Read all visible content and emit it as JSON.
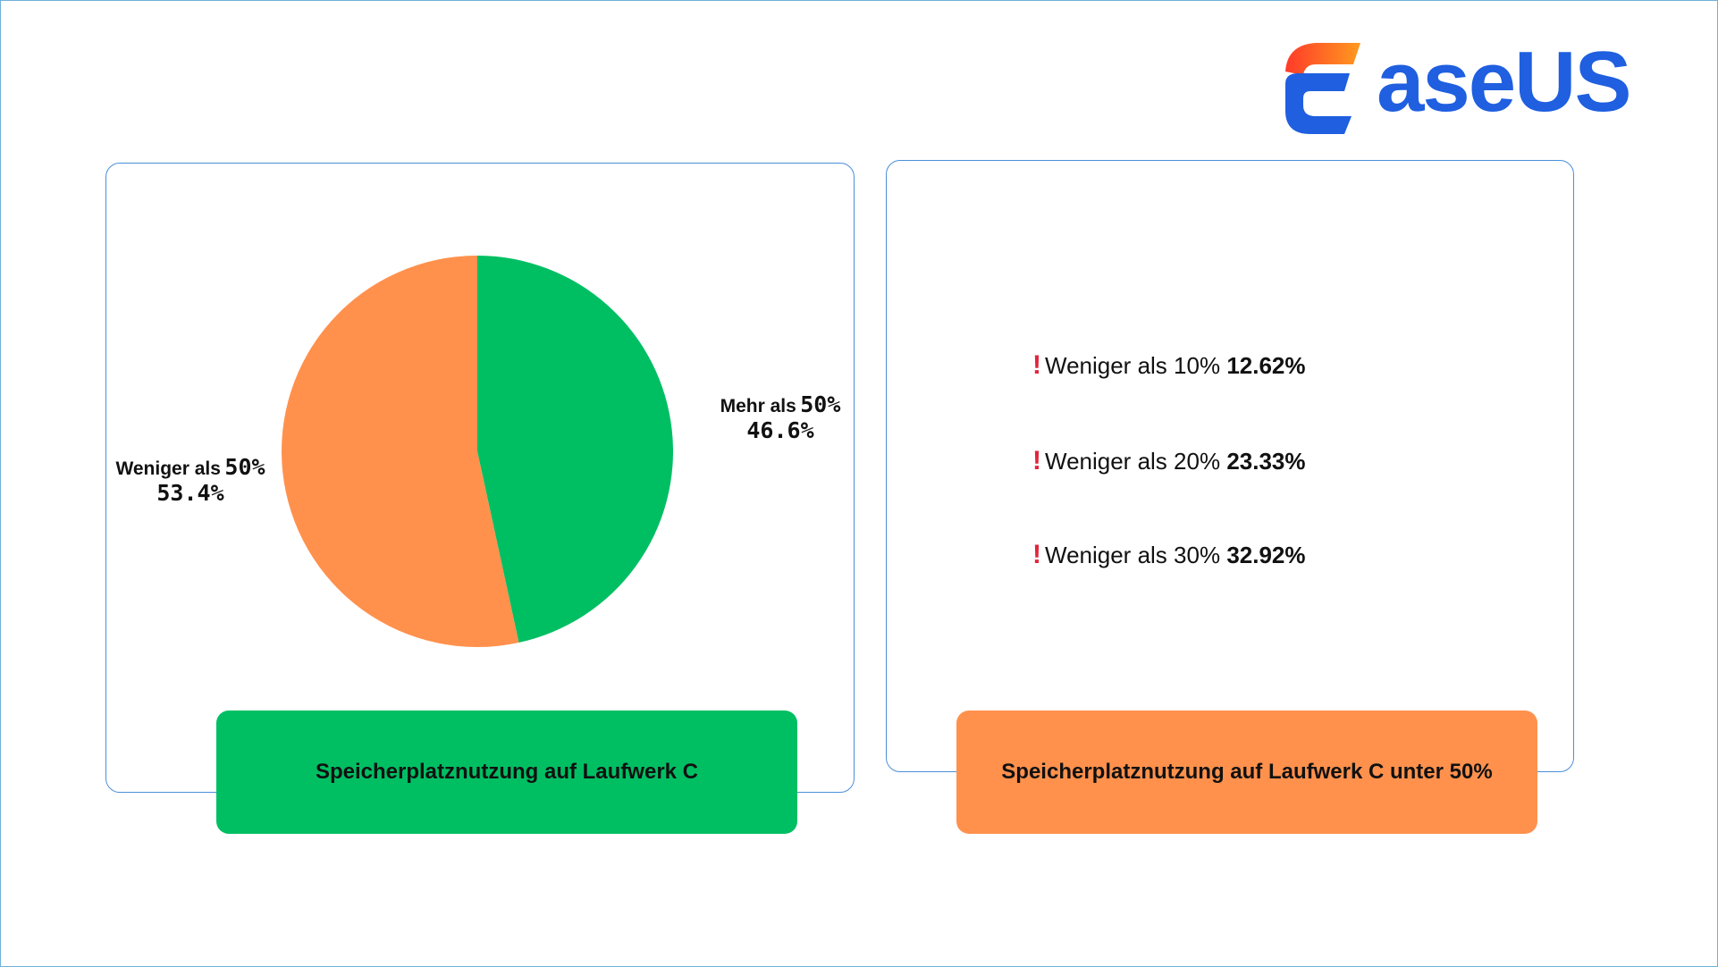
{
  "brand": {
    "name": "EaseUS",
    "wordmark": "aseUS",
    "color_blue": "#1f5fe0",
    "color_orange": "#ff6a1f",
    "icon": "easeus-e-logo-icon"
  },
  "colors": {
    "green": "#00bf63",
    "orange": "#ff914d",
    "panel_border": "#4a8fd9",
    "alert": "#e0263c"
  },
  "chart_data": {
    "type": "pie",
    "slices": [
      {
        "label": "Mehr als",
        "threshold": "50%",
        "value": 46.6,
        "value_label": "46.6%",
        "color": "#00bf63"
      },
      {
        "label": "Weniger als",
        "threshold": "50%",
        "value": 53.4,
        "value_label": "53.4%",
        "color": "#ff914d"
      }
    ],
    "caption": "Speicherplatznutzung auf Laufwerk C"
  },
  "breakdown": {
    "items": [
      {
        "icon": "exclamation-icon",
        "label": "Weniger als 10%",
        "value": "12.62%"
      },
      {
        "icon": "exclamation-icon",
        "label": "Weniger als 20%",
        "value": "23.33%"
      },
      {
        "icon": "exclamation-icon",
        "label": "Weniger als 30%",
        "value": "32.92%"
      }
    ],
    "caption": "Speicherplatznutzung auf Laufwerk C unter 50%"
  }
}
